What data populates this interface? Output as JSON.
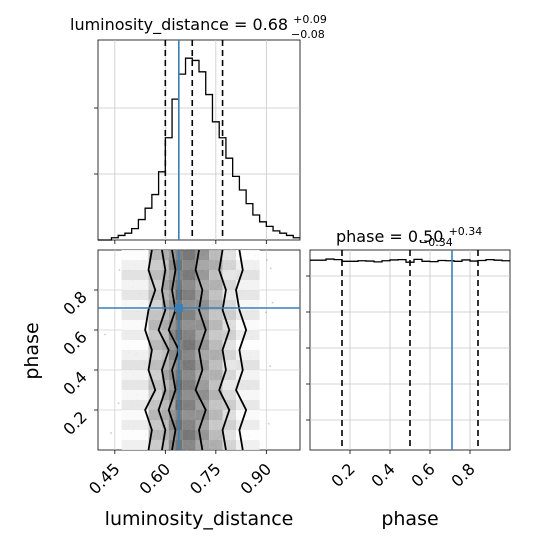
{
  "chart_data": [
    {
      "type": "histogram",
      "panel": "luminosity_distance marginal",
      "title": {
        "main": "luminosity_distance = 0.68",
        "sup": "+0.09",
        "sub": "−0.08"
      },
      "xlim": [
        0.4,
        1.0
      ],
      "bins": {
        "start": 0.4,
        "width": 0.02,
        "counts": [
          0,
          0,
          1,
          2,
          3,
          5,
          9,
          14,
          20,
          30,
          45,
          62,
          73,
          80,
          79,
          74,
          64,
          52,
          45,
          36,
          28,
          22,
          16,
          11,
          8,
          6,
          4,
          3,
          2,
          1
        ]
      },
      "quantiles": [
        0.6,
        0.68,
        0.77
      ],
      "truth": 0.64
    },
    {
      "type": "scatter",
      "panel": "2D joint luminosity_distance vs phase",
      "xlabel": "luminosity_distance",
      "ylabel": "phase",
      "xlim": [
        0.4,
        1.0
      ],
      "ylim": [
        0.0,
        1.0
      ],
      "xticks": [
        "0.45",
        "0.60",
        "0.75",
        "0.90"
      ],
      "xtick_values": [
        0.45,
        0.6,
        0.75,
        0.9
      ],
      "yticks": [
        "0.2",
        "0.4",
        "0.6",
        "0.8"
      ],
      "ytick_values": [
        0.2,
        0.4,
        0.6,
        0.8
      ],
      "truth": {
        "x": 0.64,
        "y": 0.71
      },
      "density_columns": [
        {
          "x": [
            0.47,
            0.55
          ],
          "level": 0.1
        },
        {
          "x": [
            0.55,
            0.59
          ],
          "level": 0.35
        },
        {
          "x": [
            0.59,
            0.61
          ],
          "level": 0.45
        },
        {
          "x": [
            0.61,
            0.63
          ],
          "level": 0.62
        },
        {
          "x": [
            0.63,
            0.65
          ],
          "level": 0.8
        },
        {
          "x": [
            0.65,
            0.69
          ],
          "level": 0.72
        },
        {
          "x": [
            0.69,
            0.73
          ],
          "level": 0.58
        },
        {
          "x": [
            0.73,
            0.77
          ],
          "level": 0.4
        },
        {
          "x": [
            0.77,
            0.81
          ],
          "level": 0.22
        },
        {
          "x": [
            0.81,
            0.88
          ],
          "level": 0.1
        }
      ],
      "contours": [
        {
          "left": [
            0.55,
            0.56,
            0.54,
            0.57,
            0.55,
            0.56,
            0.54,
            0.55,
            0.57,
            0.55,
            0.56
          ],
          "right": [
            0.83,
            0.82,
            0.84,
            0.81,
            0.83,
            0.82,
            0.84,
            0.82,
            0.81,
            0.83,
            0.82
          ]
        },
        {
          "left": [
            0.59,
            0.6,
            0.58,
            0.6,
            0.59,
            0.61,
            0.58,
            0.6,
            0.59,
            0.6,
            0.59
          ],
          "right": [
            0.78,
            0.77,
            0.79,
            0.76,
            0.78,
            0.77,
            0.79,
            0.77,
            0.78,
            0.76,
            0.77
          ]
        },
        {
          "left": [
            0.62,
            0.63,
            0.61,
            0.63,
            0.62,
            0.64,
            0.61,
            0.63,
            0.62,
            0.63,
            0.62
          ],
          "right": [
            0.71,
            0.7,
            0.72,
            0.69,
            0.71,
            0.7,
            0.72,
            0.7,
            0.71,
            0.69,
            0.7
          ]
        }
      ]
    },
    {
      "type": "histogram",
      "panel": "phase marginal",
      "title": {
        "main": "phase = 0.50",
        "sup": "+0.34",
        "sub": "−0.34"
      },
      "xlabel": "phase",
      "xlim": [
        0.0,
        1.0
      ],
      "xticks": [
        "0.2",
        "0.4",
        "0.6",
        "0.8"
      ],
      "xtick_values": [
        0.2,
        0.4,
        0.6,
        0.8
      ],
      "bins": {
        "start": 0.0,
        "width": 0.04,
        "counts": [
          84,
          84,
          88,
          86,
          80,
          80,
          82,
          81,
          78,
          82,
          85,
          86,
          77,
          87,
          80,
          79,
          83,
          82,
          80,
          85,
          81,
          83,
          86,
          84,
          82
        ]
      },
      "ylim": [
        0,
        120
      ],
      "quantiles": [
        0.16,
        0.5,
        0.84
      ],
      "truth": 0.71
    }
  ]
}
